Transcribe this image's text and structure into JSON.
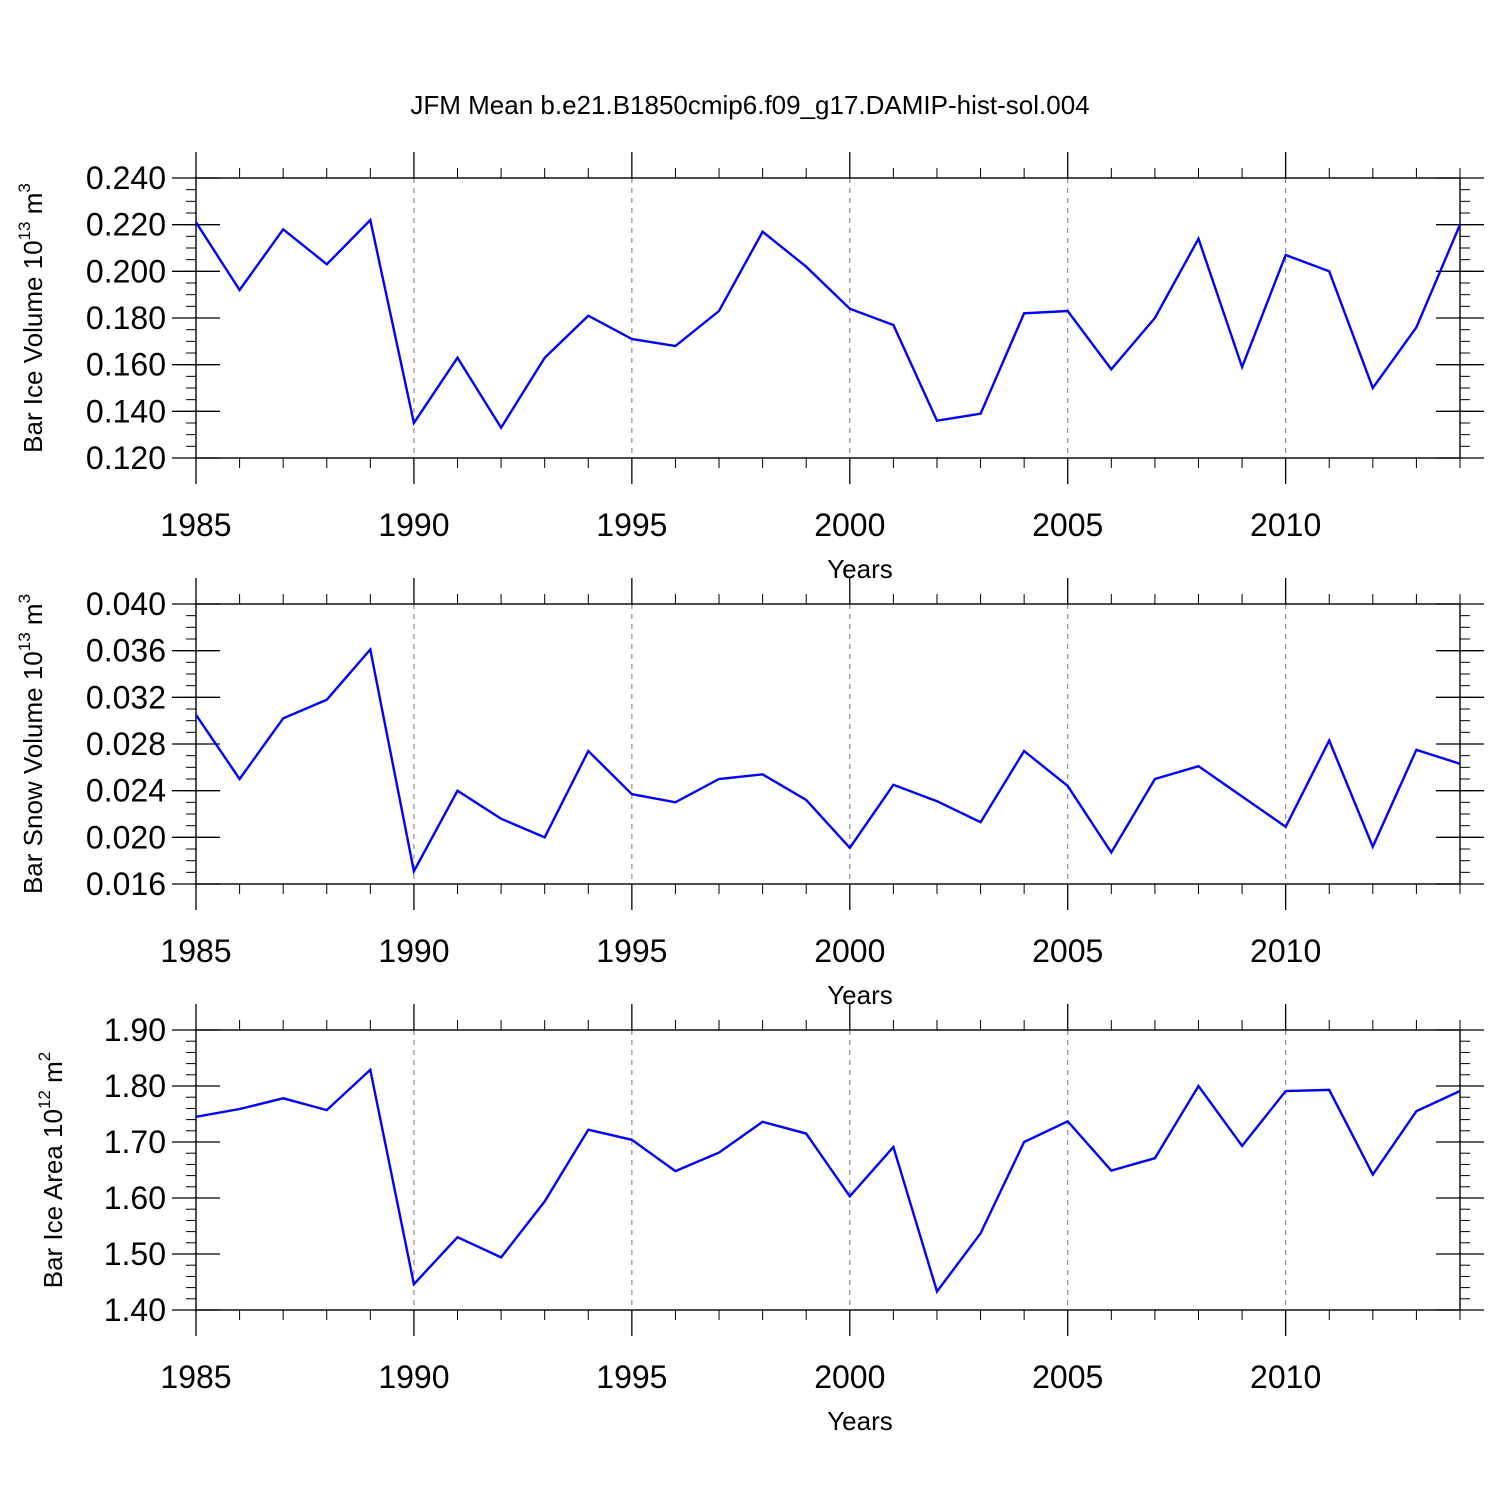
{
  "title": "JFM Mean b.e21.B1850cmip6.f09_g17.DAMIP-hist-sol.004",
  "chart_data": [
    {
      "type": "line",
      "ylabel_main": "Bar Ice Volume 10",
      "ylabel_sup": "13",
      "ylabel_unit": " m",
      "ylabel_unit_sup": "3",
      "xlabel": "Years",
      "xlim": [
        1985,
        2014
      ],
      "ylim": [
        0.12,
        0.24
      ],
      "yticks": [
        0.12,
        0.14,
        0.16,
        0.18,
        0.2,
        0.22,
        0.24
      ],
      "ytick_labels": [
        "0.120",
        "0.140",
        "0.160",
        "0.180",
        "0.200",
        "0.220",
        "0.240"
      ],
      "yminor_step": 0.005,
      "xticks": [
        1985,
        1990,
        1995,
        2000,
        2005,
        2010
      ],
      "xtick_labels": [
        "1985",
        "1990",
        "1995",
        "2000",
        "2005",
        "2010"
      ],
      "grid": "dashed vertical at major x ticks",
      "series": [
        {
          "name": "Bar Ice Volume",
          "color": "#0000ff",
          "x": [
            1985,
            1986,
            1987,
            1988,
            1989,
            1990,
            1991,
            1992,
            1993,
            1994,
            1995,
            1996,
            1997,
            1998,
            1999,
            2000,
            2001,
            2002,
            2003,
            2004,
            2005,
            2006,
            2007,
            2008,
            2009,
            2010,
            2011,
            2012,
            2013,
            2014
          ],
          "values": [
            0.221,
            0.192,
            0.218,
            0.203,
            0.222,
            0.135,
            0.163,
            0.133,
            0.163,
            0.181,
            0.171,
            0.168,
            0.183,
            0.217,
            0.202,
            0.184,
            0.177,
            0.136,
            0.139,
            0.182,
            0.183,
            0.158,
            0.18,
            0.214,
            0.159,
            0.207,
            0.2,
            0.15,
            0.176,
            0.22
          ]
        }
      ]
    },
    {
      "type": "line",
      "ylabel_main": "Bar Snow Volume 10",
      "ylabel_sup": "13",
      "ylabel_unit": " m",
      "ylabel_unit_sup": "3",
      "xlabel": "Years",
      "xlim": [
        1985,
        2014
      ],
      "ylim": [
        0.016,
        0.04
      ],
      "yticks": [
        0.016,
        0.02,
        0.024,
        0.028,
        0.032,
        0.036,
        0.04
      ],
      "ytick_labels": [
        "0.016",
        "0.020",
        "0.024",
        "0.028",
        "0.032",
        "0.036",
        "0.040"
      ],
      "yminor_step": 0.001,
      "xticks": [
        1985,
        1990,
        1995,
        2000,
        2005,
        2010
      ],
      "xtick_labels": [
        "1985",
        "1990",
        "1995",
        "2000",
        "2005",
        "2010"
      ],
      "grid": "dashed vertical at major x ticks",
      "series": [
        {
          "name": "Bar Snow Volume",
          "color": "#0000ff",
          "x": [
            1985,
            1986,
            1987,
            1988,
            1989,
            1990,
            1991,
            1992,
            1993,
            1994,
            1995,
            1996,
            1997,
            1998,
            1999,
            2000,
            2001,
            2002,
            2003,
            2004,
            2005,
            2006,
            2007,
            2008,
            2009,
            2010,
            2011,
            2012,
            2013,
            2014
          ],
          "values": [
            0.0305,
            0.025,
            0.0302,
            0.0318,
            0.0361,
            0.0171,
            0.024,
            0.0216,
            0.02,
            0.0274,
            0.0237,
            0.023,
            0.025,
            0.0254,
            0.0232,
            0.0191,
            0.0245,
            0.0231,
            0.0213,
            0.0274,
            0.0244,
            0.0187,
            0.025,
            0.0261,
            0.0235,
            0.0209,
            0.0283,
            0.0192,
            0.0275,
            0.0263
          ]
        }
      ]
    },
    {
      "type": "line",
      "ylabel_main": "Bar Ice Area 10",
      "ylabel_sup": "12",
      "ylabel_unit": " m",
      "ylabel_unit_sup": "2",
      "xlabel": "Years",
      "xlim": [
        1985,
        2014
      ],
      "ylim": [
        1.4,
        1.9
      ],
      "yticks": [
        1.4,
        1.5,
        1.6,
        1.7,
        1.8,
        1.9
      ],
      "ytick_labels": [
        "1.40",
        "1.50",
        "1.60",
        "1.70",
        "1.80",
        "1.90"
      ],
      "yminor_step": 0.02,
      "xticks": [
        1985,
        1990,
        1995,
        2000,
        2005,
        2010
      ],
      "xtick_labels": [
        "1985",
        "1990",
        "1995",
        "2000",
        "2005",
        "2010"
      ],
      "grid": "dashed vertical at major x ticks",
      "series": [
        {
          "name": "Bar Ice Area",
          "color": "#0000ff",
          "x": [
            1985,
            1986,
            1987,
            1988,
            1989,
            1990,
            1991,
            1992,
            1993,
            1994,
            1995,
            1996,
            1997,
            1998,
            1999,
            2000,
            2001,
            2002,
            2003,
            2004,
            2005,
            2006,
            2007,
            2008,
            2009,
            2010,
            2011,
            2012,
            2013,
            2014
          ],
          "values": [
            1.745,
            1.759,
            1.778,
            1.757,
            1.829,
            1.446,
            1.53,
            1.494,
            1.594,
            1.722,
            1.704,
            1.648,
            1.681,
            1.736,
            1.715,
            1.603,
            1.691,
            1.433,
            1.537,
            1.7,
            1.737,
            1.649,
            1.671,
            1.8,
            1.693,
            1.791,
            1.793,
            1.642,
            1.755,
            1.791
          ]
        }
      ]
    }
  ]
}
